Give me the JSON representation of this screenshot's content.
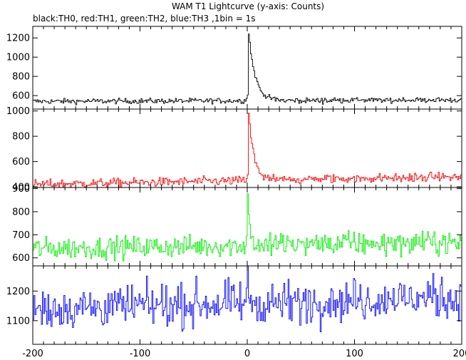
{
  "title": "WAM T1 Lightcurve (y-axis: Counts)",
  "subtitle": "black:TH0, red:TH1, green:TH2, blue:TH3 ,1bin = 1s",
  "chart_data": {
    "type": "line",
    "x_range": [
      -200,
      200
    ],
    "x_ticks": [
      -200,
      -100,
      0,
      100,
      200
    ],
    "bin_seconds": 1,
    "panels": [
      {
        "series": "TH0",
        "color": "#000000",
        "ylim": [
          460,
          1320
        ],
        "y_ticks": [
          600,
          800,
          1000,
          1200
        ],
        "baseline_start": 540,
        "baseline_end": 555,
        "noise": 14,
        "peak": 1310,
        "peak_at": 1,
        "decay_seconds": 6
      },
      {
        "series": "TH1",
        "color": "#ff0000",
        "ylim": [
          395,
          1015
        ],
        "y_ticks": [
          400,
          600,
          800,
          1000
        ],
        "baseline_start": 420,
        "baseline_end": 480,
        "noise": 18,
        "peak": 1005,
        "peak_at": 1,
        "decay_seconds": 5
      },
      {
        "series": "TH2",
        "color": "#00ee00",
        "ylim": [
          565,
          905
        ],
        "y_ticks": [
          600,
          700,
          800,
          900
        ],
        "baseline_start": 640,
        "baseline_end": 668,
        "noise": 24,
        "peak": 895,
        "peak_at": 0,
        "decay_seconds": 2
      },
      {
        "series": "TH3",
        "color": "#0000ff",
        "ylim": [
          1020,
          1285
        ],
        "y_ticks": [
          1100,
          1200
        ],
        "baseline_start": 1140,
        "baseline_end": 1180,
        "noise": 35,
        "peak": 1230,
        "peak_at": 0,
        "decay_seconds": 2
      }
    ]
  }
}
